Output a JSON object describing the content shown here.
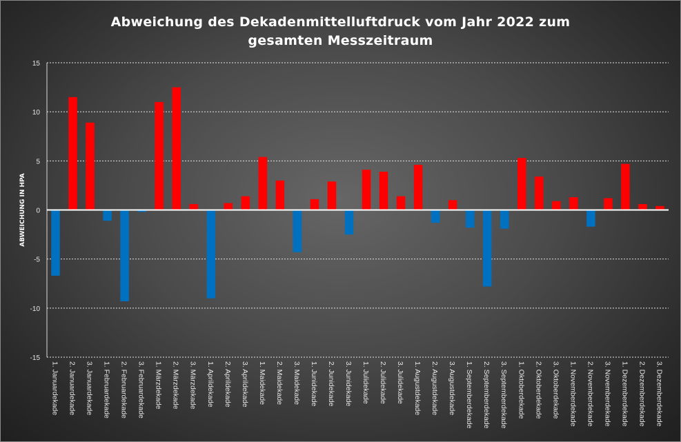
{
  "chart_data": {
    "type": "bar",
    "title_line1": "Abweichung des Dekadenmittelluftdruck  vom Jahr 2022 zum",
    "title_line2": "gesamten Messzeitraum",
    "xlabel": "",
    "ylabel": "ABWEICHUNG IN HPA",
    "ylim": [
      -15,
      15
    ],
    "yticks": [
      -15,
      -10,
      -5,
      0,
      5,
      10,
      15
    ],
    "grid": true,
    "positive_color": "#ff0000",
    "negative_color": "#0070c0",
    "categories": [
      "1. Januardekade",
      "2. Januardekade",
      "3. Januardekade",
      "1. Februardekade",
      "2. Februardekade",
      "3. Februardekade",
      "1. Märzdekade",
      "2. Märzdekade",
      "3. Märzdekade",
      "1. Aprildekade",
      "2. Aprildekade",
      "3. Aprildekade",
      "1. Maidekade",
      "2. Maidekade",
      "3. Maidekade",
      "1. Junidekade",
      "2. Junidekade",
      "3. Junidekade",
      "1. Julidekade",
      "2. Julidekade",
      "3. Julidekade",
      "1. Augustdekade",
      "2. Augustdekade",
      "3. Augustdekade",
      "1. Septemberdekade",
      "2. Septemberdekade",
      "3. Septemberdekade",
      "1. Oktoberdekade",
      "2. Oktoberdekade",
      "3. Oktoberdekade",
      "1. Novemberdekade",
      "2. Novemberdekade",
      "3. Novemberdekade",
      "1. Dezemberdekade",
      "2. Dezemberdekade",
      "3. Dezemberdekade"
    ],
    "values": [
      -6.7,
      11.5,
      8.9,
      -1.1,
      -9.3,
      -0.2,
      11.0,
      12.5,
      0.6,
      -9.0,
      0.7,
      1.4,
      5.4,
      3.0,
      -4.3,
      1.1,
      2.9,
      -2.5,
      4.1,
      3.9,
      1.4,
      4.6,
      -1.3,
      1.0,
      -1.8,
      -7.8,
      -1.9,
      5.3,
      3.4,
      0.9,
      1.3,
      -1.7,
      1.2,
      4.7,
      0.6,
      0.4
    ]
  }
}
